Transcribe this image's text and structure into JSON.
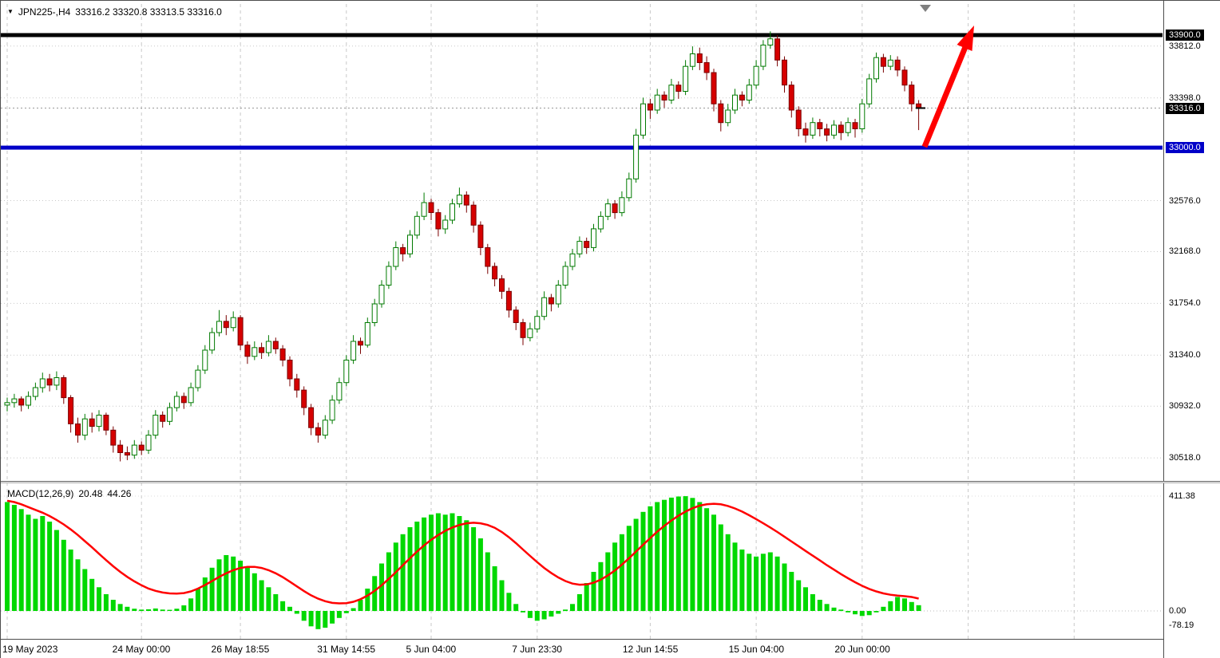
{
  "header": {
    "symbol": "JPN225-,H4",
    "ohlc": "33316.2 33320.8 33313.5 33316.0"
  },
  "price_axis": {
    "plain_labels": [
      "33812.0",
      "33398.0",
      "32576.0",
      "32168.0",
      "31754.0",
      "31340.0",
      "30932.0",
      "30518.0"
    ],
    "resistance_badge": "33900.0",
    "current_badge": "33316.0",
    "support_badge": "33000.0"
  },
  "time_axis": [
    {
      "label": "19 May 2023",
      "candle_index": 0
    },
    {
      "label": "24 May 00:00",
      "candle_index": 19
    },
    {
      "label": "26 May 18:55",
      "candle_index": 33
    },
    {
      "label": "31 May 14:55",
      "candle_index": 48
    },
    {
      "label": "5 Jun 04:00",
      "candle_index": 60
    },
    {
      "label": "7 Jun 23:30",
      "candle_index": 75
    },
    {
      "label": "12 Jun 14:55",
      "candle_index": 91
    },
    {
      "label": "15 Jun 04:00",
      "candle_index": 106
    },
    {
      "label": "20 Jun 00:00",
      "candle_index": 121
    },
    {
      "label": "",
      "candle_index": 136
    },
    {
      "label": "",
      "candle_index": 151
    }
  ],
  "macd_panel": {
    "label": "MACD(12,26,9)",
    "macd_value": "20.48",
    "signal_value": "44.26",
    "scale_labels": [
      "411.38",
      "0.00",
      "-78.19"
    ]
  },
  "chart_data": {
    "type": "candlestick",
    "symbol": "JPN225-",
    "timeframe": "H4",
    "title": "JPN225- H4 candlestick chart with MACD(12,26,9), horizontal resistance 33900.0, support 33000.0, red up arrow from support toward resistance",
    "ylim": [
      30400,
      33950
    ],
    "levels": {
      "resistance": 33900.0,
      "support": 33000.0,
      "last_price": 33316.0
    },
    "last_values": {
      "open": 33316.2,
      "high": 33320.8,
      "low": 33313.5,
      "close": 33316.0
    },
    "annotations": [
      {
        "type": "arrow",
        "direction": "up",
        "color": "#FF0000",
        "from_price": 33000,
        "to_price": 33870
      }
    ],
    "candles_ohlc": [
      [
        30940,
        31000,
        30890,
        30960
      ],
      [
        30960,
        31030,
        30920,
        30990
      ],
      [
        30990,
        31010,
        30890,
        30940
      ],
      [
        30940,
        31050,
        30910,
        31010
      ],
      [
        31010,
        31120,
        30980,
        31080
      ],
      [
        31080,
        31200,
        31040,
        31150
      ],
      [
        31150,
        31190,
        31050,
        31100
      ],
      [
        31100,
        31210,
        31060,
        31160
      ],
      [
        31160,
        31180,
        30950,
        31000
      ],
      [
        31000,
        31020,
        30720,
        30790
      ],
      [
        30790,
        30840,
        30640,
        30700
      ],
      [
        30700,
        30870,
        30660,
        30830
      ],
      [
        30830,
        30880,
        30720,
        30770
      ],
      [
        30770,
        30900,
        30730,
        30860
      ],
      [
        30860,
        30880,
        30700,
        30740
      ],
      [
        30740,
        30770,
        30560,
        30620
      ],
      [
        30620,
        30660,
        30490,
        30560
      ],
      [
        30560,
        30610,
        30500,
        30540
      ],
      [
        30540,
        30660,
        30510,
        30620
      ],
      [
        30620,
        30650,
        30540,
        30580
      ],
      [
        30580,
        30740,
        30550,
        30700
      ],
      [
        30700,
        30900,
        30670,
        30860
      ],
      [
        30860,
        30890,
        30760,
        30810
      ],
      [
        30810,
        30960,
        30780,
        30920
      ],
      [
        30920,
        31050,
        30890,
        31010
      ],
      [
        31010,
        31040,
        30910,
        30960
      ],
      [
        30960,
        31120,
        30930,
        31080
      ],
      [
        31080,
        31260,
        31050,
        31220
      ],
      [
        31220,
        31420,
        31190,
        31380
      ],
      [
        31380,
        31560,
        31350,
        31520
      ],
      [
        31520,
        31700,
        31490,
        31610
      ],
      [
        31610,
        31660,
        31500,
        31560
      ],
      [
        31560,
        31690,
        31530,
        31640
      ],
      [
        31640,
        31660,
        31380,
        31420
      ],
      [
        31420,
        31450,
        31270,
        31330
      ],
      [
        31330,
        31450,
        31300,
        31400
      ],
      [
        31400,
        31440,
        31310,
        31360
      ],
      [
        31360,
        31500,
        31330,
        31450
      ],
      [
        31450,
        31480,
        31350,
        31390
      ],
      [
        31390,
        31420,
        31250,
        31300
      ],
      [
        31300,
        31330,
        31090,
        31150
      ],
      [
        31150,
        31190,
        31000,
        31060
      ],
      [
        31060,
        31090,
        30860,
        30920
      ],
      [
        30920,
        30950,
        30700,
        30760
      ],
      [
        30760,
        30800,
        30640,
        30700
      ],
      [
        30700,
        30860,
        30670,
        30820
      ],
      [
        30820,
        31020,
        30790,
        30980
      ],
      [
        30980,
        31160,
        30950,
        31120
      ],
      [
        31120,
        31340,
        31090,
        31300
      ],
      [
        31300,
        31500,
        31270,
        31450
      ],
      [
        31450,
        31480,
        31350,
        31420
      ],
      [
        31420,
        31640,
        31400,
        31600
      ],
      [
        31600,
        31790,
        31570,
        31750
      ],
      [
        31750,
        31940,
        31720,
        31900
      ],
      [
        31900,
        32090,
        31870,
        32050
      ],
      [
        32050,
        32250,
        32020,
        32200
      ],
      [
        32200,
        32230,
        32090,
        32150
      ],
      [
        32150,
        32340,
        32120,
        32300
      ],
      [
        32300,
        32490,
        32270,
        32450
      ],
      [
        32450,
        32640,
        32420,
        32560
      ],
      [
        32560,
        32590,
        32420,
        32480
      ],
      [
        32480,
        32510,
        32290,
        32350
      ],
      [
        32350,
        32460,
        32310,
        32420
      ],
      [
        32420,
        32590,
        32390,
        32550
      ],
      [
        32550,
        32680,
        32520,
        32620
      ],
      [
        32620,
        32650,
        32480,
        32540
      ],
      [
        32540,
        32570,
        32320,
        32380
      ],
      [
        32380,
        32410,
        32140,
        32200
      ],
      [
        32200,
        32230,
        31990,
        32050
      ],
      [
        32050,
        32080,
        31890,
        31950
      ],
      [
        31950,
        31980,
        31790,
        31850
      ],
      [
        31850,
        31880,
        31640,
        31700
      ],
      [
        31700,
        31730,
        31540,
        31600
      ],
      [
        31600,
        31630,
        31420,
        31480
      ],
      [
        31480,
        31600,
        31450,
        31550
      ],
      [
        31550,
        31700,
        31520,
        31650
      ],
      [
        31650,
        31850,
        31620,
        31800
      ],
      [
        31800,
        31830,
        31690,
        31750
      ],
      [
        31750,
        31940,
        31720,
        31900
      ],
      [
        31900,
        32090,
        31870,
        32050
      ],
      [
        32050,
        32190,
        32020,
        32150
      ],
      [
        32150,
        32290,
        32120,
        32250
      ],
      [
        32250,
        32280,
        32150,
        32200
      ],
      [
        32200,
        32390,
        32170,
        32350
      ],
      [
        32350,
        32490,
        32320,
        32450
      ],
      [
        32450,
        32590,
        32420,
        32550
      ],
      [
        32550,
        32580,
        32430,
        32480
      ],
      [
        32480,
        32650,
        32450,
        32600
      ],
      [
        32600,
        32800,
        32570,
        32750
      ],
      [
        32750,
        33150,
        32720,
        33100
      ],
      [
        33100,
        33400,
        33070,
        33350
      ],
      [
        33350,
        33390,
        33230,
        33300
      ],
      [
        33300,
        33470,
        33270,
        33420
      ],
      [
        33420,
        33450,
        33320,
        33380
      ],
      [
        33380,
        33550,
        33350,
        33500
      ],
      [
        33500,
        33530,
        33390,
        33450
      ],
      [
        33450,
        33700,
        33420,
        33650
      ],
      [
        33650,
        33810,
        33620,
        33750
      ],
      [
        33750,
        33800,
        33620,
        33680
      ],
      [
        33680,
        33730,
        33540,
        33600
      ],
      [
        33600,
        33630,
        33290,
        33350
      ],
      [
        33350,
        33380,
        33130,
        33200
      ],
      [
        33200,
        33350,
        33170,
        33300
      ],
      [
        33300,
        33470,
        33270,
        33420
      ],
      [
        33420,
        33450,
        33330,
        33380
      ],
      [
        33380,
        33550,
        33350,
        33500
      ],
      [
        33500,
        33700,
        33470,
        33650
      ],
      [
        33650,
        33860,
        33620,
        33820
      ],
      [
        33820,
        33930,
        33790,
        33870
      ],
      [
        33870,
        33900,
        33650,
        33700
      ],
      [
        33700,
        33730,
        33440,
        33500
      ],
      [
        33500,
        33530,
        33240,
        33300
      ],
      [
        33300,
        33330,
        33090,
        33150
      ],
      [
        33150,
        33200,
        33040,
        33100
      ],
      [
        33100,
        33240,
        33070,
        33200
      ],
      [
        33200,
        33230,
        33090,
        33150
      ],
      [
        33150,
        33190,
        33050,
        33100
      ],
      [
        33100,
        33220,
        33070,
        33180
      ],
      [
        33180,
        33210,
        33060,
        33120
      ],
      [
        33120,
        33240,
        33090,
        33200
      ],
      [
        33200,
        33230,
        33080,
        33150
      ],
      [
        33150,
        33390,
        33120,
        33350
      ],
      [
        33350,
        33590,
        33320,
        33550
      ],
      [
        33550,
        33760,
        33520,
        33720
      ],
      [
        33720,
        33750,
        33600,
        33650
      ],
      [
        33650,
        33740,
        33620,
        33700
      ],
      [
        33700,
        33730,
        33570,
        33620
      ],
      [
        33620,
        33650,
        33450,
        33500
      ],
      [
        33500,
        33530,
        33290,
        33350
      ],
      [
        33350,
        33380,
        33140,
        33316
      ]
    ],
    "indicator": {
      "type": "macd-histogram",
      "params": "12,26,9",
      "ymax": 411.38,
      "ymin": -78.19,
      "last_macd": 20.48,
      "last_signal": 44.26,
      "histogram": [
        390,
        380,
        365,
        345,
        330,
        340,
        320,
        290,
        255,
        220,
        185,
        150,
        115,
        85,
        60,
        40,
        25,
        15,
        8,
        5,
        6,
        9,
        5,
        4,
        8,
        20,
        45,
        80,
        120,
        155,
        185,
        200,
        195,
        180,
        160,
        135,
        110,
        85,
        60,
        35,
        15,
        -10,
        -35,
        -55,
        -65,
        -60,
        -45,
        -25,
        -8,
        10,
        40,
        80,
        125,
        170,
        210,
        245,
        275,
        300,
        320,
        335,
        345,
        350,
        345,
        350,
        340,
        325,
        300,
        260,
        210,
        160,
        110,
        65,
        25,
        -5,
        -25,
        -35,
        -30,
        -20,
        -10,
        5,
        25,
        60,
        100,
        140,
        175,
        210,
        245,
        275,
        305,
        330,
        355,
        375,
        390,
        398,
        406,
        410,
        411,
        405,
        390,
        368,
        345,
        310,
        275,
        245,
        220,
        205,
        195,
        205,
        210,
        195,
        170,
        140,
        110,
        85,
        60,
        40,
        25,
        12,
        5,
        -5,
        -12,
        -18,
        -15,
        -5,
        15,
        35,
        50,
        45,
        32,
        20.48
      ],
      "signal": [
        395,
        390,
        382,
        372,
        362,
        352,
        340,
        326,
        310,
        292,
        272,
        250,
        228,
        205,
        182,
        160,
        140,
        122,
        106,
        92,
        80,
        72,
        66,
        63,
        62,
        64,
        70,
        80,
        93,
        107,
        122,
        135,
        146,
        154,
        158,
        158,
        154,
        146,
        135,
        121,
        105,
        88,
        71,
        56,
        44,
        35,
        29,
        27,
        28,
        33,
        42,
        55,
        72,
        92,
        115,
        139,
        164,
        189,
        213,
        235,
        255,
        272,
        287,
        299,
        308,
        314,
        316,
        314,
        308,
        298,
        283,
        264,
        243,
        220,
        197,
        175,
        154,
        136,
        120,
        107,
        98,
        94,
        95,
        101,
        112,
        127,
        145,
        166,
        189,
        213,
        237,
        261,
        284,
        305,
        324,
        341,
        356,
        368,
        377,
        382,
        384,
        382,
        376,
        367,
        356,
        343,
        329,
        314,
        299,
        283,
        266,
        249,
        232,
        215,
        198,
        181,
        164,
        148,
        132,
        117,
        103,
        90,
        79,
        70,
        63,
        58,
        55,
        53,
        50,
        44.26
      ]
    }
  },
  "colors": {
    "bull_fill": "#FFFFFF",
    "bull_stroke": "#007A00",
    "bear_fill": "#D60000",
    "bear_stroke": "#7A0000",
    "histogram": "#00D800",
    "signal": "#FF0000",
    "support_line": "#0000C8",
    "resistance_line": "#000000",
    "arrow": "#FF0000",
    "grid": "#C9C9C9"
  }
}
